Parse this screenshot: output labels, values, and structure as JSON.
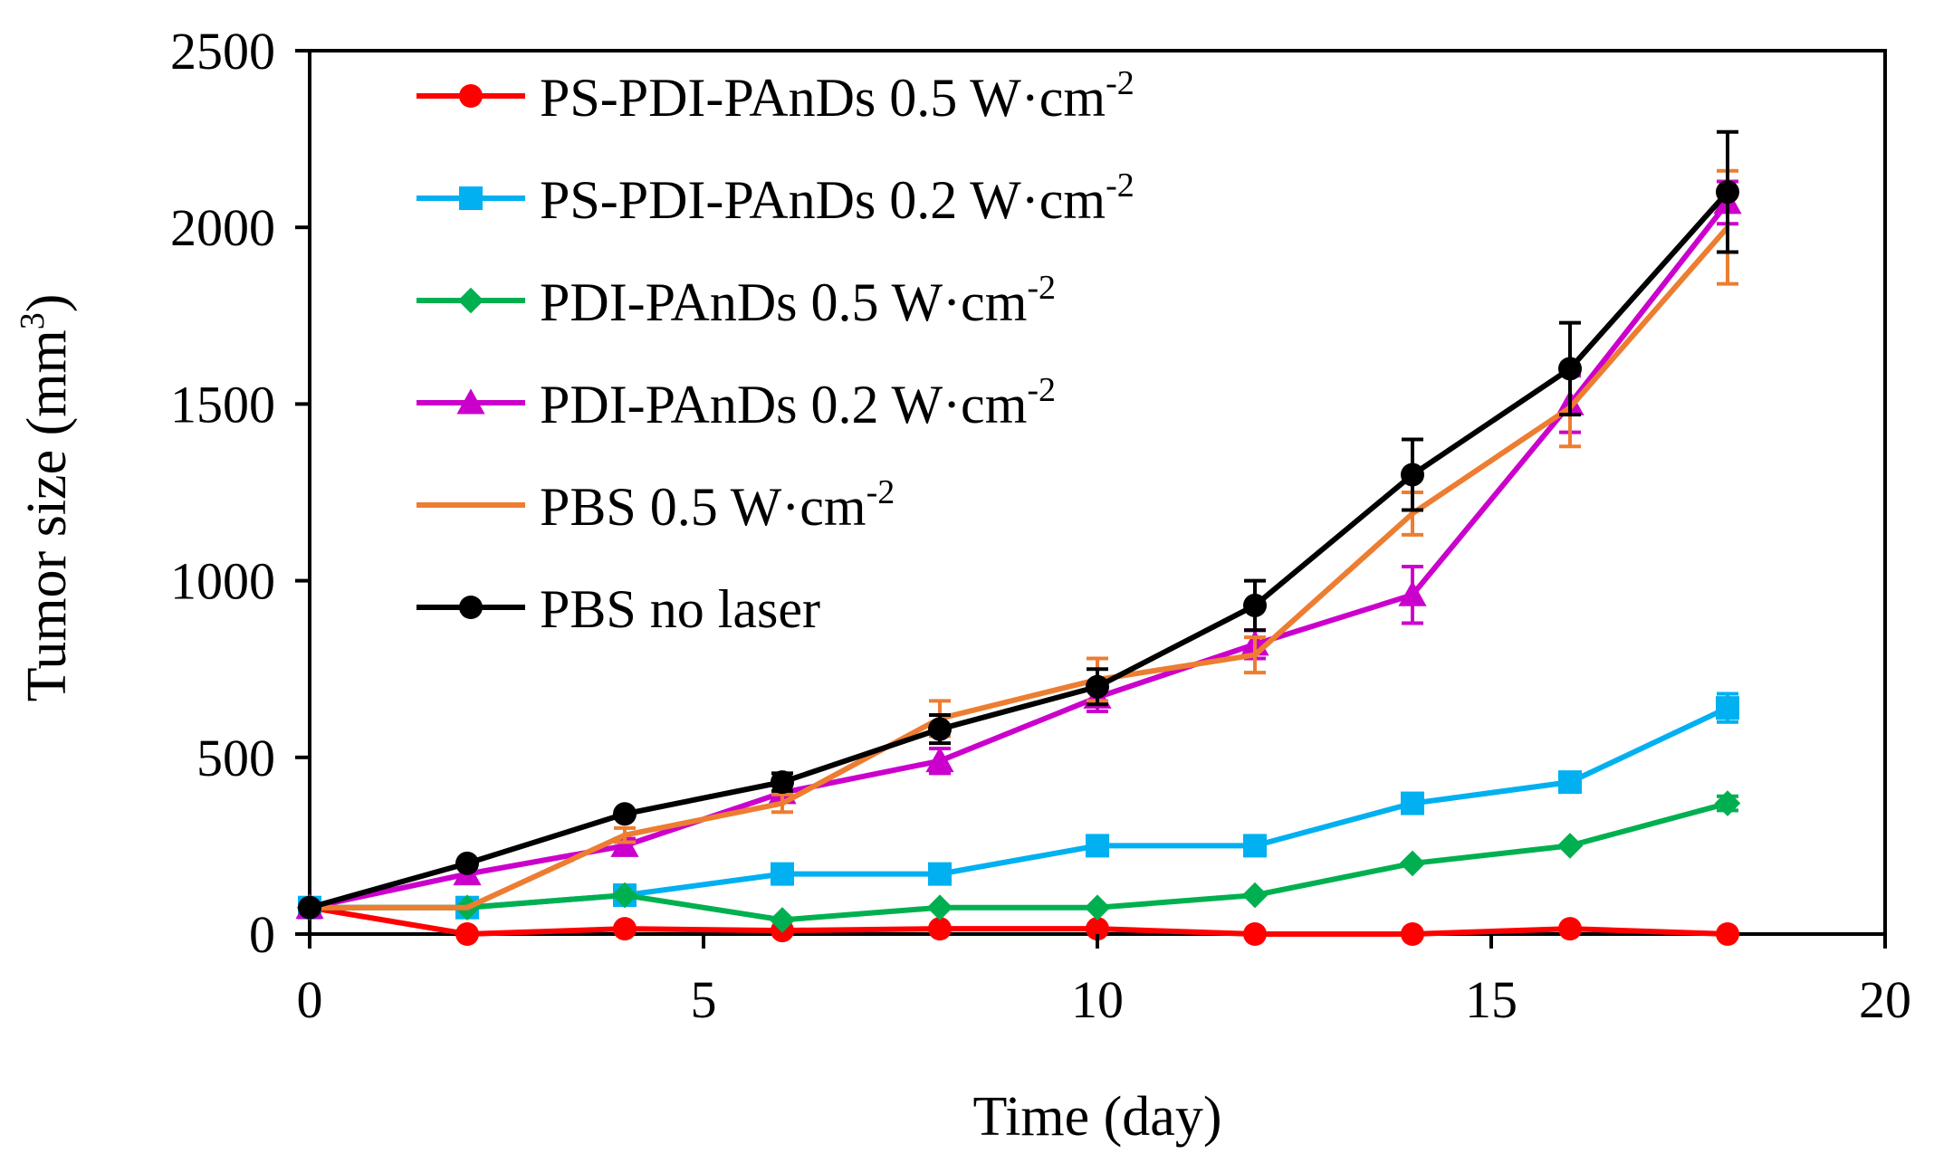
{
  "chart_data": {
    "type": "line",
    "title": "",
    "xlabel": "Time (day)",
    "ylabel": "Tumor size (mm",
    "ylabel_sup": "3",
    "ylabel_end": ")",
    "xlim": [
      0,
      20
    ],
    "ylim": [
      0,
      2500
    ],
    "xticks": [
      0,
      5,
      10,
      15,
      20
    ],
    "yticks": [
      0,
      500,
      1000,
      1500,
      2000,
      2500
    ],
    "xtick_labels": [
      "0",
      "5",
      "10",
      "15",
      "20"
    ],
    "ytick_labels": [
      "0",
      "500",
      "1000",
      "1500",
      "2000",
      "2500"
    ],
    "grid": false,
    "legend_position": "top-left",
    "x": [
      0,
      2,
      4,
      6,
      8,
      10,
      12,
      14,
      16,
      18
    ],
    "series": [
      {
        "name": "PS-PDI-PAnDs 0.5 W·cm",
        "name_sup": "-2",
        "color": "#ff0000",
        "marker": "circle",
        "values": [
          75,
          0,
          15,
          10,
          15,
          15,
          0,
          0,
          15,
          0
        ],
        "errors": [
          0,
          0,
          0,
          0,
          0,
          0,
          0,
          0,
          0,
          0
        ]
      },
      {
        "name": "PS-PDI-PAnDs 0.2 W·cm",
        "name_sup": "-2",
        "color": "#00b0f0",
        "marker": "square",
        "values": [
          75,
          75,
          110,
          170,
          170,
          250,
          250,
          370,
          430,
          640
        ],
        "errors": [
          0,
          0,
          0,
          0,
          0,
          0,
          0,
          0,
          20,
          40
        ]
      },
      {
        "name": "PDI-PAnDs 0.5 W·cm",
        "name_sup": "-2",
        "color": "#00b050",
        "marker": "diamond",
        "values": [
          75,
          75,
          110,
          40,
          75,
          75,
          110,
          200,
          250,
          370
        ],
        "errors": [
          0,
          0,
          0,
          0,
          0,
          0,
          0,
          0,
          0,
          20
        ]
      },
      {
        "name": "PDI-PAnDs 0.2 W·cm",
        "name_sup": "-2",
        "color": "#cc00cc",
        "marker": "triangle",
        "values": [
          75,
          170,
          250,
          400,
          490,
          670,
          820,
          960,
          1500,
          2070
        ],
        "errors": [
          0,
          20,
          20,
          25,
          35,
          40,
          40,
          80,
          80,
          60
        ]
      },
      {
        "name": "PBS 0.5 W·cm",
        "name_sup": "-2",
        "color": "#ed7d31",
        "marker": "none",
        "values": [
          75,
          75,
          280,
          370,
          610,
          720,
          790,
          1190,
          1490,
          2000
        ],
        "errors": [
          0,
          0,
          20,
          25,
          50,
          60,
          50,
          60,
          110,
          160
        ]
      },
      {
        "name": "PBS no laser",
        "name_sup": "",
        "color": "#000000",
        "marker": "circle",
        "values": [
          75,
          200,
          340,
          430,
          580,
          700,
          930,
          1300,
          1600,
          2100
        ],
        "errors": [
          0,
          0,
          0,
          25,
          40,
          50,
          70,
          100,
          130,
          170
        ]
      }
    ]
  }
}
